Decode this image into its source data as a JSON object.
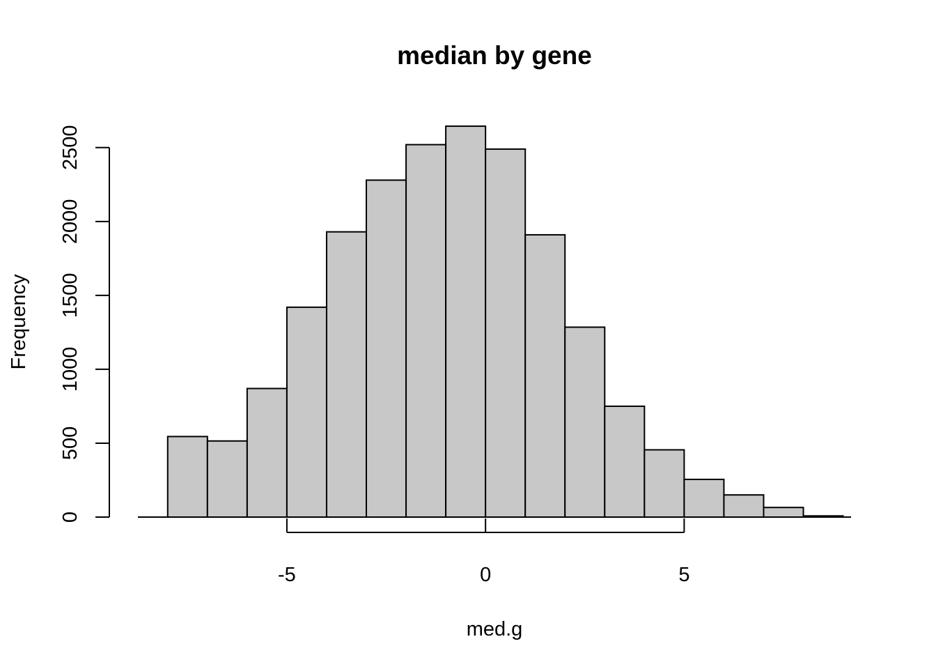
{
  "chart_data": {
    "type": "bar",
    "subtype": "histogram",
    "title": "median by gene",
    "xlabel": "med.g",
    "ylabel": "Frequency",
    "bins": [
      {
        "x0": -8,
        "x1": -7,
        "count": 545
      },
      {
        "x0": -7,
        "x1": -6,
        "count": 515
      },
      {
        "x0": -6,
        "x1": -5,
        "count": 870
      },
      {
        "x0": -5,
        "x1": -4,
        "count": 1420
      },
      {
        "x0": -4,
        "x1": -3,
        "count": 1930
      },
      {
        "x0": -3,
        "x1": -2,
        "count": 2280
      },
      {
        "x0": -2,
        "x1": -1,
        "count": 2520
      },
      {
        "x0": -1,
        "x1": 0,
        "count": 2645
      },
      {
        "x0": 0,
        "x1": 1,
        "count": 2490
      },
      {
        "x0": 1,
        "x1": 2,
        "count": 1910
      },
      {
        "x0": 2,
        "x1": 3,
        "count": 1285
      },
      {
        "x0": 3,
        "x1": 4,
        "count": 750
      },
      {
        "x0": 4,
        "x1": 5,
        "count": 455
      },
      {
        "x0": 5,
        "x1": 6,
        "count": 255
      },
      {
        "x0": 6,
        "x1": 7,
        "count": 150
      },
      {
        "x0": 7,
        "x1": 8,
        "count": 65
      },
      {
        "x0": 8,
        "x1": 9,
        "count": 8
      }
    ],
    "xlim": [
      -8.75,
      9.2
    ],
    "ylim": [
      0,
      2650
    ],
    "xticks": [
      -5,
      0,
      5
    ],
    "xtick_labels": [
      "-5",
      "0",
      "5"
    ],
    "yticks": [
      0,
      500,
      1000,
      1500,
      2000,
      2500
    ],
    "ytick_labels": [
      "0",
      "500",
      "1000",
      "1500",
      "2000",
      "2500"
    ],
    "bar_color": "#c8c8c8",
    "edge_color": "#000000",
    "grid": false,
    "legend": "none"
  }
}
